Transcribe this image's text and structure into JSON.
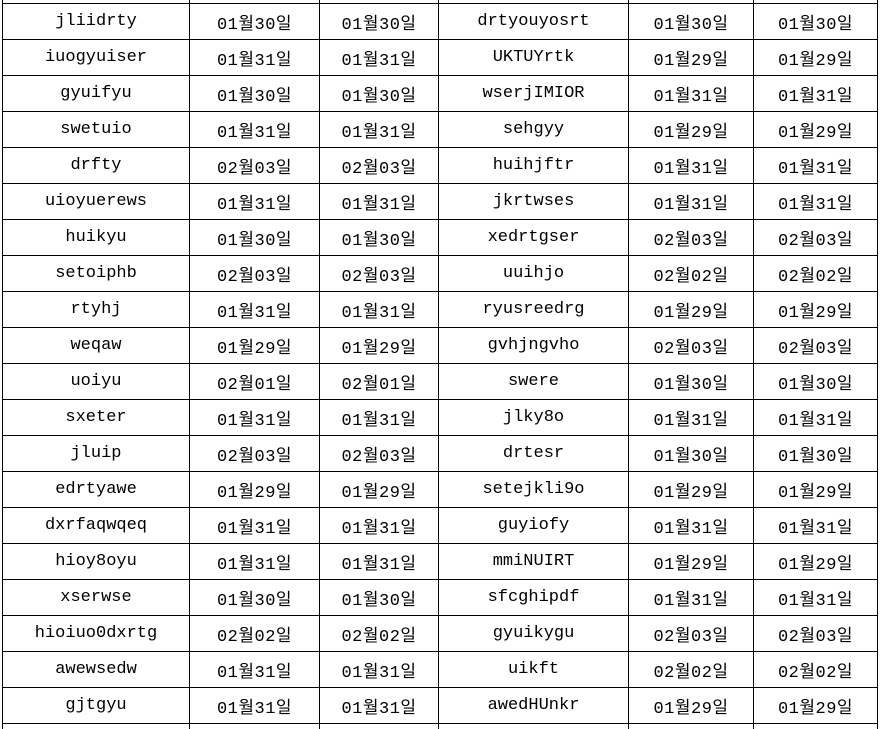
{
  "colors": {
    "background": "#ffffff",
    "border": "#000000",
    "text": "#000000"
  },
  "table": {
    "column_keys": [
      "name_a",
      "date_a1",
      "date_a2",
      "name_b",
      "date_b1",
      "date_b2"
    ],
    "rows": [
      {
        "name_a": "jliidrty",
        "date_a1": "01월30일",
        "date_a2": "01월30일",
        "name_b": "drtyouyosrt",
        "date_b1": "01월30일",
        "date_b2": "01월30일"
      },
      {
        "name_a": "iuogyuiser",
        "date_a1": "01월31일",
        "date_a2": "01월31일",
        "name_b": "UKTUYrtk",
        "date_b1": "01월29일",
        "date_b2": "01월29일"
      },
      {
        "name_a": "gyuifyu",
        "date_a1": "01월30일",
        "date_a2": "01월30일",
        "name_b": "wserjIMIOR",
        "date_b1": "01월31일",
        "date_b2": "01월31일"
      },
      {
        "name_a": "swetuio",
        "date_a1": "01월31일",
        "date_a2": "01월31일",
        "name_b": "sehgyy",
        "date_b1": "01월29일",
        "date_b2": "01월29일"
      },
      {
        "name_a": "drfty",
        "date_a1": "02월03일",
        "date_a2": "02월03일",
        "name_b": "huihjftr",
        "date_b1": "01월31일",
        "date_b2": "01월31일"
      },
      {
        "name_a": "uioyuerews",
        "date_a1": "01월31일",
        "date_a2": "01월31일",
        "name_b": "jkrtwses",
        "date_b1": "01월31일",
        "date_b2": "01월31일"
      },
      {
        "name_a": "huikyu",
        "date_a1": "01월30일",
        "date_a2": "01월30일",
        "name_b": "xedrtgser",
        "date_b1": "02월03일",
        "date_b2": "02월03일"
      },
      {
        "name_a": "setoiphb",
        "date_a1": "02월03일",
        "date_a2": "02월03일",
        "name_b": "uuihjo",
        "date_b1": "02월02일",
        "date_b2": "02월02일"
      },
      {
        "name_a": "rtyhj",
        "date_a1": "01월31일",
        "date_a2": "01월31일",
        "name_b": "ryusreedrg",
        "date_b1": "01월29일",
        "date_b2": "01월29일"
      },
      {
        "name_a": "weqaw",
        "date_a1": "01월29일",
        "date_a2": "01월29일",
        "name_b": "gvhjngvho",
        "date_b1": "02월03일",
        "date_b2": "02월03일"
      },
      {
        "name_a": "uoiyu",
        "date_a1": "02월01일",
        "date_a2": "02월01일",
        "name_b": "swere",
        "date_b1": "01월30일",
        "date_b2": "01월30일"
      },
      {
        "name_a": "sxeter",
        "date_a1": "01월31일",
        "date_a2": "01월31일",
        "name_b": "jlky8o",
        "date_b1": "01월31일",
        "date_b2": "01월31일"
      },
      {
        "name_a": "jluip",
        "date_a1": "02월03일",
        "date_a2": "02월03일",
        "name_b": "drtesr",
        "date_b1": "01월30일",
        "date_b2": "01월30일"
      },
      {
        "name_a": "edrtyawe",
        "date_a1": "01월29일",
        "date_a2": "01월29일",
        "name_b": "setejkli9o",
        "date_b1": "01월29일",
        "date_b2": "01월29일"
      },
      {
        "name_a": "dxrfaqwqeq",
        "date_a1": "01월31일",
        "date_a2": "01월31일",
        "name_b": "guyiofy",
        "date_b1": "01월31일",
        "date_b2": "01월31일"
      },
      {
        "name_a": "hioy8oyu",
        "date_a1": "01월31일",
        "date_a2": "01월31일",
        "name_b": "mmiNUIRT",
        "date_b1": "01월29일",
        "date_b2": "01월29일"
      },
      {
        "name_a": "xserwse",
        "date_a1": "01월30일",
        "date_a2": "01월30일",
        "name_b": "sfcghipdf",
        "date_b1": "01월31일",
        "date_b2": "01월31일"
      },
      {
        "name_a": "hioiuo0dxrtg",
        "date_a1": "02월02일",
        "date_a2": "02월02일",
        "name_b": "gyuikygu",
        "date_b1": "02월03일",
        "date_b2": "02월03일"
      },
      {
        "name_a": "awewsedw",
        "date_a1": "01월31일",
        "date_a2": "01월31일",
        "name_b": "uikft",
        "date_b1": "02월02일",
        "date_b2": "02월02일"
      },
      {
        "name_a": "gjtgyu",
        "date_a1": "01월31일",
        "date_a2": "01월31일",
        "name_b": "awedHUnkr",
        "date_b1": "01월29일",
        "date_b2": "01월29일"
      }
    ]
  }
}
